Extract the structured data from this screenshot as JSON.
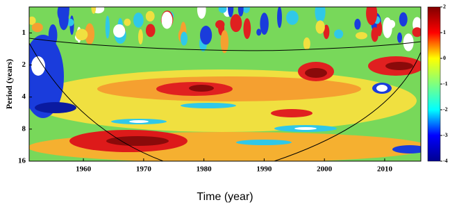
{
  "chart_data": {
    "type": "wavelet",
    "x_label": "Time (year)",
    "y_label": "Period (years)",
    "xlim": [
      1951,
      2016
    ],
    "xticks": [
      1960,
      1970,
      1980,
      1990,
      2000,
      2010
    ],
    "ylim": [
      0.57,
      16
    ],
    "yticks": [
      1,
      2,
      4,
      8,
      16
    ],
    "y_log": true,
    "y_inverted": true,
    "colorbar": {
      "lim": [
        -4,
        2
      ],
      "ticks": [
        2,
        1,
        0,
        -1,
        -2,
        -3,
        -4
      ],
      "colormap": "jet"
    }
  }
}
